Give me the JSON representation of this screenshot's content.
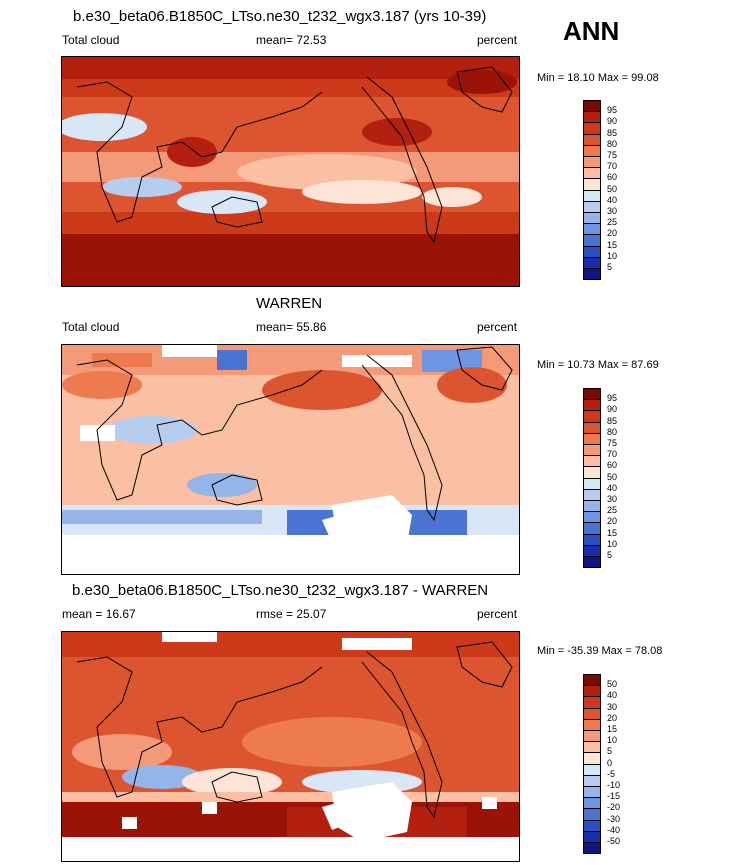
{
  "header": {
    "ann_label": "ANN"
  },
  "panels": [
    {
      "title": "b.e30_beta06.B1850C_LTso.ne30_t232_wgx3.187 (yrs 10-39)",
      "left_label": "Total cloud",
      "center_label": "mean=  72.53",
      "right_label": "percent",
      "minmax": "Min =  18.10 Max =  99.08",
      "colorbar_labels": [
        "95",
        "90",
        "85",
        "80",
        "75",
        "70",
        "60",
        "50",
        "40",
        "30",
        "25",
        "20",
        "15",
        "10",
        "5"
      ]
    },
    {
      "title": "WARREN",
      "left_label": "Total cloud",
      "center_label": "mean=  55.86",
      "right_label": "percent",
      "minmax": "Min =  10.73 Max =  87.69",
      "colorbar_labels": [
        "95",
        "90",
        "85",
        "80",
        "75",
        "70",
        "60",
        "50",
        "40",
        "30",
        "25",
        "20",
        "15",
        "10",
        "5"
      ]
    },
    {
      "title": "b.e30_beta06.B1850C_LTso.ne30_t232_wgx3.187 - WARREN",
      "left_label": "mean =  16.67",
      "center_label": "rmse =  25.07",
      "right_label": "percent",
      "minmax": "Min = -35.39 Max =  78.08",
      "colorbar_labels": [
        "50",
        "40",
        "30",
        "20",
        "15",
        "10",
        "5",
        "0",
        "-5",
        "-10",
        "-15",
        "-20",
        "-30",
        "-40",
        "-50"
      ]
    }
  ],
  "colors": {
    "colorbar": [
      "#7a0a00",
      "#b32010",
      "#cc3a1a",
      "#dd5530",
      "#ee7a50",
      "#f59a78",
      "#fbc0a4",
      "#fde4d6",
      "#d8e6f6",
      "#b7cdef",
      "#95b4e8",
      "#6e95df",
      "#4a73d3",
      "#2b4fc2",
      "#1a2ea8",
      "#0d1684"
    ],
    "coast": "#000000"
  }
}
